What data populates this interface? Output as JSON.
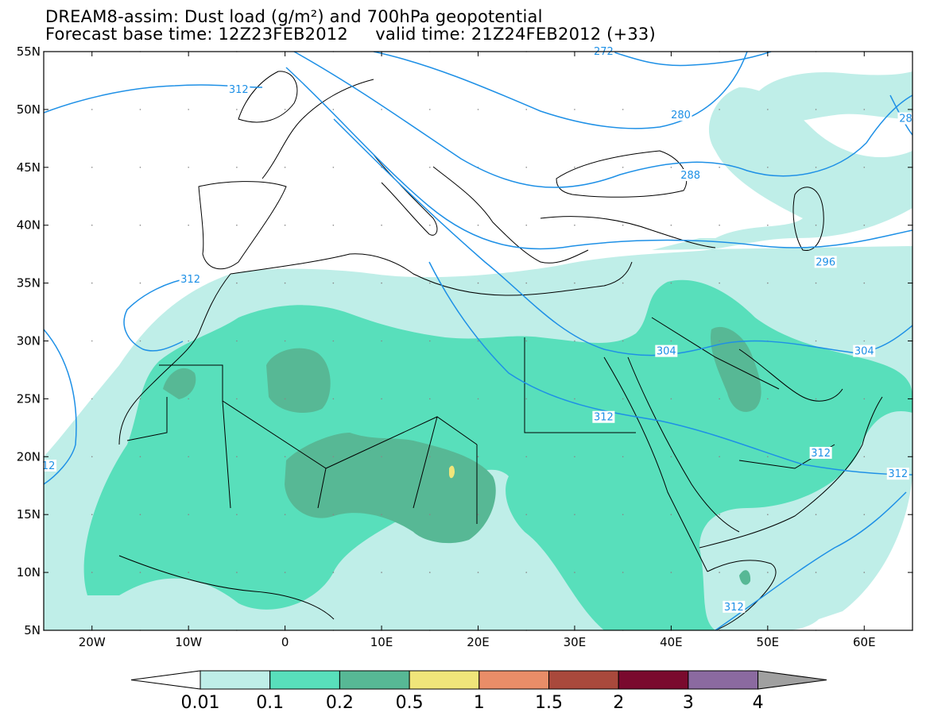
{
  "title": {
    "line1": "DREAM8-assim: Dust load (g/m²) and 700hPa geopotential",
    "line2": "Forecast base time: 12Z23FEB2012     valid time: 21Z24FEB2012 (+33)"
  },
  "map": {
    "lon_range": [
      -25,
      65
    ],
    "lat_range": [
      5,
      55
    ],
    "x_ticks": [
      {
        "lon": -20,
        "label": "20W"
      },
      {
        "lon": -10,
        "label": "10W"
      },
      {
        "lon": 0,
        "label": "0"
      },
      {
        "lon": 10,
        "label": "10E"
      },
      {
        "lon": 20,
        "label": "20E"
      },
      {
        "lon": 30,
        "label": "30E"
      },
      {
        "lon": 40,
        "label": "40E"
      },
      {
        "lon": 50,
        "label": "50E"
      },
      {
        "lon": 60,
        "label": "60E"
      }
    ],
    "y_ticks": [
      {
        "lat": 55,
        "label": "55N"
      },
      {
        "lat": 50,
        "label": "50N"
      },
      {
        "lat": 45,
        "label": "45N"
      },
      {
        "lat": 40,
        "label": "40N"
      },
      {
        "lat": 35,
        "label": "35N"
      },
      {
        "lat": 30,
        "label": "30N"
      },
      {
        "lat": 25,
        "label": "25N"
      },
      {
        "lat": 20,
        "label": "20N"
      },
      {
        "lat": 15,
        "label": "15N"
      },
      {
        "lat": 10,
        "label": "10N"
      },
      {
        "lat": 5,
        "label": "5N"
      }
    ],
    "contour_labels": [
      {
        "text": "272",
        "lon": 33,
        "lat": 55
      },
      {
        "text": "280",
        "lon": 41,
        "lat": 49.5
      },
      {
        "text": "288",
        "lon": 42,
        "lat": 44.3
      },
      {
        "text": "296",
        "lon": 56,
        "lat": 36.8
      },
      {
        "text": "304",
        "lon": 39.5,
        "lat": 29.1
      },
      {
        "text": "304",
        "lon": 60,
        "lat": 29.1
      },
      {
        "text": "312",
        "lon": -9.8,
        "lat": 35.3
      },
      {
        "text": "312",
        "lon": -4.8,
        "lat": 51.7
      },
      {
        "text": "312",
        "lon": 33,
        "lat": 23.4
      },
      {
        "text": "312",
        "lon": 55.5,
        "lat": 20.3
      },
      {
        "text": "312",
        "lon": 63.5,
        "lat": 18.5
      },
      {
        "text": "312",
        "lon": 46.5,
        "lat": 7.0
      },
      {
        "text": "12",
        "lon": -24.5,
        "lat": 19.2
      },
      {
        "text": "28",
        "lon": 64.3,
        "lat": 49.2
      }
    ]
  },
  "colorbar": {
    "labels": [
      "0.01",
      "0.1",
      "0.2",
      "0.5",
      "1",
      "1.5",
      "2",
      "3",
      "4"
    ],
    "colors": [
      "#bfeee8",
      "#58dfbb",
      "#57b895",
      "#f0e57a",
      "#e98d68",
      "#a9493c",
      "#7a0a2e",
      "#8b6aa0"
    ],
    "under_color": "#ffffff",
    "over_color": "#a0a0a0"
  },
  "dust_colors": {
    "level1": "#bfeee8",
    "level2": "#58dfbb",
    "level3": "#57b895",
    "level4": "#f0e57a"
  },
  "contour_color": "#1e90e6"
}
